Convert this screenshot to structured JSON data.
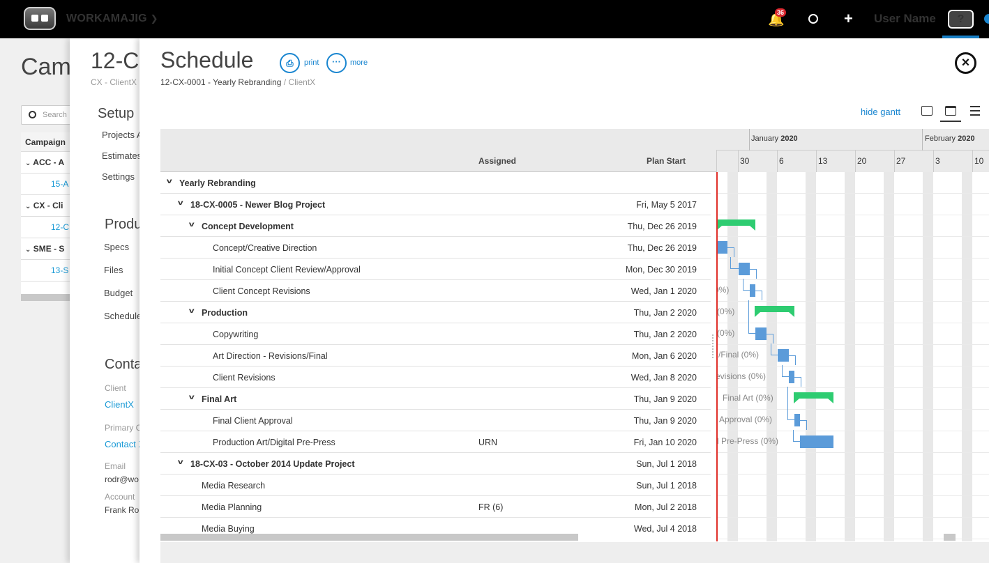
{
  "app": {
    "brand": "WORKAMAJIG",
    "notifications_count": "36",
    "user_name": "User Name",
    "help_label": "?"
  },
  "campaign_panel": {
    "title": "Cam",
    "search_placeholder": "Search",
    "column_header": "Campaign",
    "rows": [
      {
        "label": "ACC - A",
        "type": "group"
      },
      {
        "label": "15-A",
        "type": "link"
      },
      {
        "label": "CX - Cli",
        "type": "group"
      },
      {
        "label": "12-C",
        "type": "link"
      },
      {
        "label": "SME - S",
        "type": "group"
      },
      {
        "label": "13-S",
        "type": "link"
      }
    ]
  },
  "project_panel": {
    "title": "12-C",
    "subtitle": "CX - ClientX",
    "setup_heading": "Setup",
    "setup_items": [
      "Projects A",
      "Estimates",
      "Settings"
    ],
    "production_heading": "Produ",
    "production_items": [
      "Specs",
      "Files",
      "Budget",
      "Schedule"
    ],
    "contact_heading": "Conta",
    "client_label": "Client",
    "client_value": "ClientX",
    "primary_label": "Primary C",
    "primary_value": "Contact X",
    "email_label": "Email",
    "email_value": "rodr@wo",
    "account_label": "Account",
    "account_value": "Frank Ro"
  },
  "schedule": {
    "title": "Schedule",
    "print_label": "print",
    "more_label": "more",
    "breadcrumb_project": "12-CX-0001 - Yearly Rebranding",
    "breadcrumb_sep": " / ",
    "breadcrumb_client": "ClientX",
    "hide_gantt_label": "hide gantt",
    "columns": {
      "assigned": "Assigned",
      "plan_start": "Plan Start"
    },
    "months": [
      {
        "label": "January",
        "year": "2020"
      },
      {
        "label": "February",
        "year": "2020"
      }
    ],
    "weeks": [
      "30",
      "6",
      "13",
      "20",
      "27",
      "3",
      "10"
    ],
    "rows": [
      {
        "name": "Yearly Rebranding",
        "level": 0,
        "bold": true,
        "chevron": true,
        "assigned": "",
        "plan_start": ""
      },
      {
        "name": "18-CX-0005 - Newer Blog Project",
        "level": 1,
        "bold": true,
        "chevron": true,
        "assigned": "",
        "plan_start": "Fri, May 5 2017"
      },
      {
        "name": "Concept Development",
        "level": 2,
        "bold": true,
        "chevron": true,
        "assigned": "",
        "plan_start": "Thu, Dec 26 2019"
      },
      {
        "name": "Concept/Creative Direction",
        "level": 3,
        "bold": false,
        "chevron": false,
        "assigned": "",
        "plan_start": "Thu, Dec 26 2019"
      },
      {
        "name": "Initial Concept Client Review/Approval",
        "level": 3,
        "bold": false,
        "chevron": false,
        "assigned": "",
        "plan_start": "Mon, Dec 30 2019"
      },
      {
        "name": "Client Concept Revisions",
        "level": 3,
        "bold": false,
        "chevron": false,
        "assigned": "",
        "plan_start": "Wed, Jan 1 2020"
      },
      {
        "name": "Production",
        "level": 2,
        "bold": true,
        "chevron": true,
        "assigned": "",
        "plan_start": "Thu, Jan 2 2020"
      },
      {
        "name": "Copywriting",
        "level": 3,
        "bold": false,
        "chevron": false,
        "assigned": "",
        "plan_start": "Thu, Jan 2 2020"
      },
      {
        "name": "Art Direction - Revisions/Final",
        "level": 3,
        "bold": false,
        "chevron": false,
        "assigned": "",
        "plan_start": "Mon, Jan 6 2020"
      },
      {
        "name": "Client Revisions",
        "level": 3,
        "bold": false,
        "chevron": false,
        "assigned": "",
        "plan_start": "Wed, Jan 8 2020"
      },
      {
        "name": "Final Art",
        "level": 2,
        "bold": true,
        "chevron": true,
        "assigned": "",
        "plan_start": "Thu, Jan 9 2020"
      },
      {
        "name": "Final Client Approval",
        "level": 3,
        "bold": false,
        "chevron": false,
        "assigned": "",
        "plan_start": "Thu, Jan 9 2020"
      },
      {
        "name": "Production Art/Digital Pre-Press",
        "level": 3,
        "bold": false,
        "chevron": false,
        "assigned": "URN",
        "plan_start": "Fri, Jan 10 2020"
      },
      {
        "name": "18-CX-03 - October 2014 Update Project",
        "level": 1,
        "bold": true,
        "chevron": true,
        "assigned": "",
        "plan_start": "Sun, Jul 1 2018"
      },
      {
        "name": "Media Research",
        "level": 2,
        "bold": false,
        "chevron": false,
        "assigned": "",
        "plan_start": "Sun, Jul 1 2018"
      },
      {
        "name": "Media Planning",
        "level": 2,
        "bold": false,
        "chevron": false,
        "assigned": "FR (6)",
        "plan_start": "Mon, Jul 2 2018"
      },
      {
        "name": "Media Buying",
        "level": 2,
        "bold": false,
        "chevron": false,
        "assigned": "",
        "plan_start": "Wed, Jul 4 2018"
      }
    ],
    "gantt_labels": [
      {
        "row": 5,
        "text": "0%)"
      },
      {
        "row": 6,
        "text": "(0%)"
      },
      {
        "row": 7,
        "text": "(0%)"
      },
      {
        "row": 8,
        "text": "/Final (0%)"
      },
      {
        "row": 9,
        "text": "evisions (0%)"
      },
      {
        "row": 10,
        "text": "Final Art (0%)"
      },
      {
        "row": 11,
        "text": "Approval (0%)"
      },
      {
        "row": 12,
        "text": "l Pre-Press (0%)"
      }
    ],
    "colors": {
      "task": "#5b9bd9",
      "summary": "#2ecc71",
      "today": "#e0302a",
      "accent": "#1a86d0"
    }
  }
}
